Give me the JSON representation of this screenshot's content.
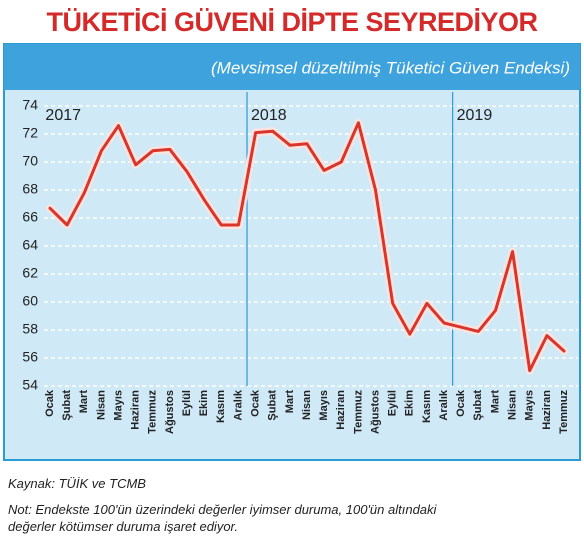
{
  "chart_data": {
    "type": "line",
    "title": "TÜKETİCİ GÜVENİ DİPTE SEYREDİYOR",
    "subtitle": "(Mevsimsel düzeltilmiş Tüketici Güven Endeksi)",
    "year_labels": [
      "2017",
      "2018",
      "2019"
    ],
    "categories": [
      "Ocak",
      "Şubat",
      "Mart",
      "Nisan",
      "Mayıs",
      "Haziran",
      "Temmuz",
      "Ağustos",
      "Eylül",
      "Ekim",
      "Kasım",
      "Aralık",
      "Ocak",
      "Şubat",
      "Mart",
      "Nisan",
      "Mayıs",
      "Haziran",
      "Temmuz",
      "Ağustos",
      "Eylül",
      "Ekim",
      "Kasım",
      "Aralık",
      "Ocak",
      "Şubat",
      "Mart",
      "Nisan",
      "Mayıs",
      "Haziran",
      "Temmuz"
    ],
    "values": [
      66.7,
      65.5,
      67.8,
      70.8,
      72.6,
      69.8,
      70.8,
      70.9,
      69.3,
      67.3,
      65.5,
      65.5,
      72.1,
      72.2,
      71.2,
      71.3,
      69.4,
      70.0,
      72.8,
      68.0,
      59.9,
      57.7,
      59.9,
      58.5,
      58.2,
      57.9,
      59.4,
      63.6,
      55.1,
      57.6,
      56.5
    ],
    "color": "#d9352b",
    "ylim": [
      54,
      74
    ],
    "yticks": [
      54,
      56,
      58,
      60,
      62,
      64,
      66,
      68,
      70,
      72,
      74
    ],
    "grid": true,
    "source": "Kaynak: TÜİK ve TCMB",
    "note": [
      "Not: Endekste 100'ün üzerindeki değerler iyimser duruma, 100'ün altındaki",
      "değerler kötümser duruma işaret ediyor."
    ]
  }
}
